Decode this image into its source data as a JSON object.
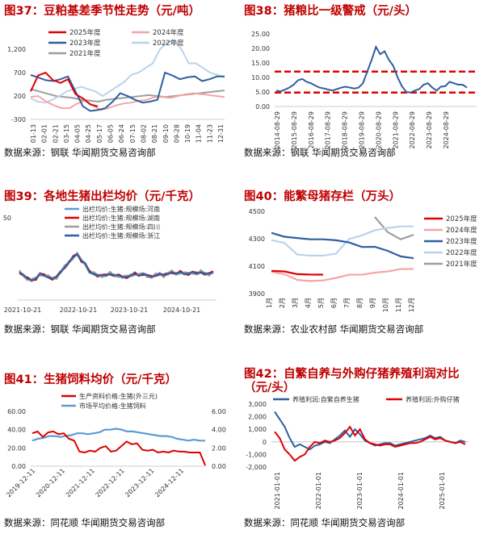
{
  "panels": {
    "p37": {
      "title": "图37：豆粕基差季节性走势（元/吨）",
      "source": "数据来源：钢联  华闻期货交易咨询部",
      "colors": {
        "2025年度": "#e00000",
        "2024年度": "#f4a6a6",
        "2023年度": "#2e5fa0",
        "2022年度": "#b9d3ee",
        "2021年度": "#9e9e9e"
      }
    },
    "p38": {
      "title": "图38：猪粮比一级警戒（元/头）",
      "source": "数据来源：钢联  华闻期货交易咨询部"
    },
    "p39": {
      "title": "图39：各地生猪出栏均价（元/千克）",
      "source": "数据来源：钢联  华闻期货交易咨询部"
    },
    "p40": {
      "title": "图40：能繁母猪存栏（万头）",
      "source": "数据来源：农业农村部  华闻期货交易咨询部"
    },
    "p41": {
      "title": "图41：生猪饲料均价（元/千克）",
      "source": "数据来源：同花顺  华闻期货交易咨询部"
    },
    "p42": {
      "title_line1": "图42：自繁自养与外购仔猪养殖利润对比",
      "title_line2": "（元/头）",
      "source": "数据来源：同花顺  华闻期货交易咨询部"
    }
  },
  "chart_data": [
    {
      "id": "p37",
      "type": "line",
      "x_ticks": [
        "01-13",
        "02-01",
        "02-21",
        "03-15",
        "04-05",
        "04-25",
        "05-17",
        "06-05",
        "06-24",
        "07-15",
        "08-02",
        "08-21",
        "09-10",
        "09-28",
        "10-19",
        "11-04",
        "11-23",
        "12-31"
      ],
      "y_ticks": [
        "1,200",
        "700",
        "200",
        "-300"
      ],
      "ylim": [
        -300,
        1600
      ],
      "legend": [
        "2025年度",
        "2024年度",
        "2023年度",
        "2022年度",
        "2021年度"
      ],
      "series": [
        {
          "name": "2025年度",
          "values": [
            300,
            640,
            700,
            540,
            480,
            560,
            240,
            150,
            20,
            -20
          ]
        },
        {
          "name": "2024年度",
          "values": [
            180,
            200,
            80,
            0,
            -60,
            -60,
            40,
            100,
            0,
            -100,
            -60,
            0,
            40,
            60,
            100,
            120,
            180,
            180,
            160,
            200,
            240,
            260,
            240,
            220,
            200,
            180
          ]
        },
        {
          "name": "2023年度",
          "values": [
            650,
            600,
            540,
            520,
            560,
            620,
            300,
            -20,
            -120,
            -100,
            -60,
            80,
            260,
            200,
            120,
            60,
            80,
            120,
            700,
            640,
            560,
            600,
            620,
            520,
            560,
            620,
            620
          ]
        },
        {
          "name": "2022年度",
          "values": [
            150,
            80,
            60,
            120,
            200,
            300,
            350,
            400,
            350,
            300,
            200,
            300,
            400,
            500,
            650,
            700,
            800,
            900,
            1200,
            1350,
            1400,
            1200,
            900,
            900,
            800,
            700,
            650,
            600
          ]
        },
        {
          "name": "2021年度",
          "values": [
            350,
            300,
            250,
            200,
            180,
            160,
            120,
            100,
            80,
            120,
            140,
            160,
            180,
            200,
            220,
            200,
            180,
            200,
            220,
            240,
            260,
            280,
            300,
            320
          ]
        }
      ]
    },
    {
      "id": "p38",
      "type": "line",
      "x_ticks": [
        "2014-08-29",
        "2015-08-29",
        "2016-08-29",
        "2017-08-29",
        "2018-08-29",
        "2019-08-29",
        "2020-08-29",
        "2021-08-29",
        "2022-08-29",
        "2023-08-29",
        "2024-08-29"
      ],
      "y_ticks": [
        "25.00",
        "20.00",
        "15.00",
        "10.00",
        "5.00",
        "0.00"
      ],
      "ylim": [
        0,
        25
      ],
      "thresholds": [
        12.0,
        4.8
      ],
      "series": [
        {
          "name": "猪粮比",
          "values": [
            5.5,
            5.2,
            5.8,
            6.5,
            7.5,
            9.0,
            9.5,
            8.5,
            8.0,
            7.2,
            6.5,
            6.2,
            5.8,
            5.5,
            6.0,
            6.5,
            6.8,
            6.5,
            6.2,
            6.5,
            8.0,
            12.0,
            16.0,
            20.5,
            18.0,
            19.0,
            16.0,
            14.0,
            10.0,
            7.0,
            5.0,
            4.8,
            5.5,
            6.0,
            7.5,
            8.0,
            6.5,
            5.5,
            6.8,
            7.0,
            8.5,
            8.0,
            7.5,
            7.5,
            6.5
          ]
        }
      ]
    },
    {
      "id": "p39",
      "type": "line",
      "x_ticks": [
        "2021-10-21",
        "2022-10-21",
        "2023-10-21",
        "2024-10-21"
      ],
      "y_ticks": [
        "50"
      ],
      "ylim": [
        0,
        50
      ],
      "legend": [
        "出栏均价:生猪:规模场:河南",
        "出栏均价:生猪:规模场:湖南",
        "出栏均价:生猪:规模场:四川",
        "出栏均价:生猪:规模场:浙江"
      ],
      "series": [
        {
          "name": "出栏均价:生猪:规模场:河南",
          "values": [
            17,
            15,
            13,
            12,
            13,
            16,
            15,
            14,
            13,
            14,
            17,
            20,
            23,
            26,
            28,
            24,
            22,
            17,
            16,
            15,
            15,
            15,
            16,
            15,
            15,
            14,
            14,
            15,
            16,
            15,
            16,
            15,
            14,
            15,
            16,
            15,
            16,
            17,
            16,
            17,
            16,
            16,
            17,
            16,
            17,
            16,
            16,
            17
          ]
        }
      ]
    },
    {
      "id": "p40",
      "type": "line",
      "x_ticks": [
        "1月",
        "2月",
        "3月",
        "4月",
        "5月",
        "6月",
        "7月",
        "8月",
        "9月",
        "10月",
        "11月",
        "12月"
      ],
      "y_ticks": [
        "4500",
        "4300",
        "4100",
        "3900"
      ],
      "ylim": [
        3900,
        4500
      ],
      "legend": [
        "2025年度",
        "2024年度",
        "2023年度",
        "2022年度",
        "2021年度"
      ],
      "series": [
        {
          "name": "2025年度",
          "values": [
            4066,
            4062,
            4042,
            4039,
            4038
          ]
        },
        {
          "name": "2024年度",
          "values": [
            4058,
            4042,
            4000,
            3992,
            3996,
            4015,
            4037,
            4038,
            4053,
            4062,
            4079,
            4080
          ]
        },
        {
          "name": "2023年度",
          "values": [
            4343,
            4315,
            4305,
            4296,
            4296,
            4289,
            4273,
            4240,
            4241,
            4212,
            4171,
            4158
          ]
        },
        {
          "name": "2022年度",
          "values": [
            4290,
            4270,
            4185,
            4177,
            4177,
            4192,
            4298,
            4324,
            4362,
            4379,
            4390,
            4390
          ]
        },
        {
          "name": "2021年度",
          "values": [
            null,
            null,
            null,
            null,
            null,
            null,
            null,
            null,
            4459,
            4348,
            4296,
            4329
          ]
        }
      ]
    },
    {
      "id": "p41",
      "type": "line",
      "x_ticks": [
        "2019-12-11",
        "2020-12-11",
        "2021-12-11",
        "2022-12-11",
        "2023-12-11",
        "2024-12-11"
      ],
      "y_ticks_left": [
        "60.00",
        "40.00",
        "20.00",
        "0.00"
      ],
      "y_ticks_right": [
        "6.00",
        "4.00",
        "2.00",
        "0.00"
      ],
      "legend": [
        "生产资料价格:生猪(外三元)",
        "市场平均价格:生猪饲料"
      ],
      "series": [
        {
          "name": "生产资料价格:生猪(外三元)",
          "axis": "left",
          "values": [
            36,
            38,
            32,
            37,
            38,
            35,
            36,
            30,
            28,
            16,
            15,
            17,
            16,
            20,
            22,
            16,
            17,
            22,
            27,
            24,
            25,
            18,
            17,
            18,
            15,
            16,
            15,
            17,
            16,
            16,
            15,
            15,
            15,
            1
          ]
        },
        {
          "name": "市场平均价格:生猪饲料",
          "axis": "right",
          "values": [
            2.8,
            3.0,
            3.1,
            3.3,
            3.3,
            3.2,
            3.3,
            3.4,
            3.6,
            3.6,
            3.5,
            3.6,
            3.7,
            4.0,
            4.0,
            4.1,
            4.0,
            3.8,
            3.8,
            3.7,
            3.6,
            3.5,
            3.4,
            3.3,
            3.3,
            3.2,
            3.0,
            2.9,
            2.8,
            2.9,
            2.8,
            2.8
          ]
        }
      ]
    },
    {
      "id": "p42",
      "type": "line",
      "x_ticks": [
        "2021-01-01",
        "2022-01-01",
        "2023-01-01",
        "2024-01-01",
        "2025-01-01"
      ],
      "y_ticks": [
        "3,000",
        "2,000",
        "1,000",
        "0",
        "-1,000",
        "-2,000"
      ],
      "ylim": [
        -2000,
        3000
      ],
      "legend": [
        "养殖利润:自繁自养生猪",
        "养殖利润:外购仔猪"
      ],
      "series": [
        {
          "name": "养殖利润:自繁自养生猪",
          "values": [
            2400,
            1800,
            1200,
            300,
            -400,
            -200,
            -400,
            -600,
            -300,
            -200,
            0,
            -100,
            200,
            500,
            900,
            400,
            1000,
            600,
            100,
            -100,
            -300,
            -200,
            -100,
            -100,
            -300,
            -200,
            -100,
            0,
            100,
            200,
            300,
            500,
            300,
            400,
            100,
            0,
            -100,
            100,
            0
          ]
        },
        {
          "name": "养殖利润:外购仔猪",
          "values": [
            800,
            300,
            -600,
            -1000,
            -1500,
            -1200,
            -1000,
            -400,
            0,
            -100,
            100,
            0,
            100,
            300,
            700,
            1200,
            500,
            1000,
            200,
            -100,
            -200,
            -300,
            -200,
            -200,
            -400,
            -300,
            -200,
            -100,
            -100,
            0,
            200,
            400,
            200,
            300,
            100,
            0,
            -100,
            0,
            -200
          ]
        }
      ]
    }
  ]
}
